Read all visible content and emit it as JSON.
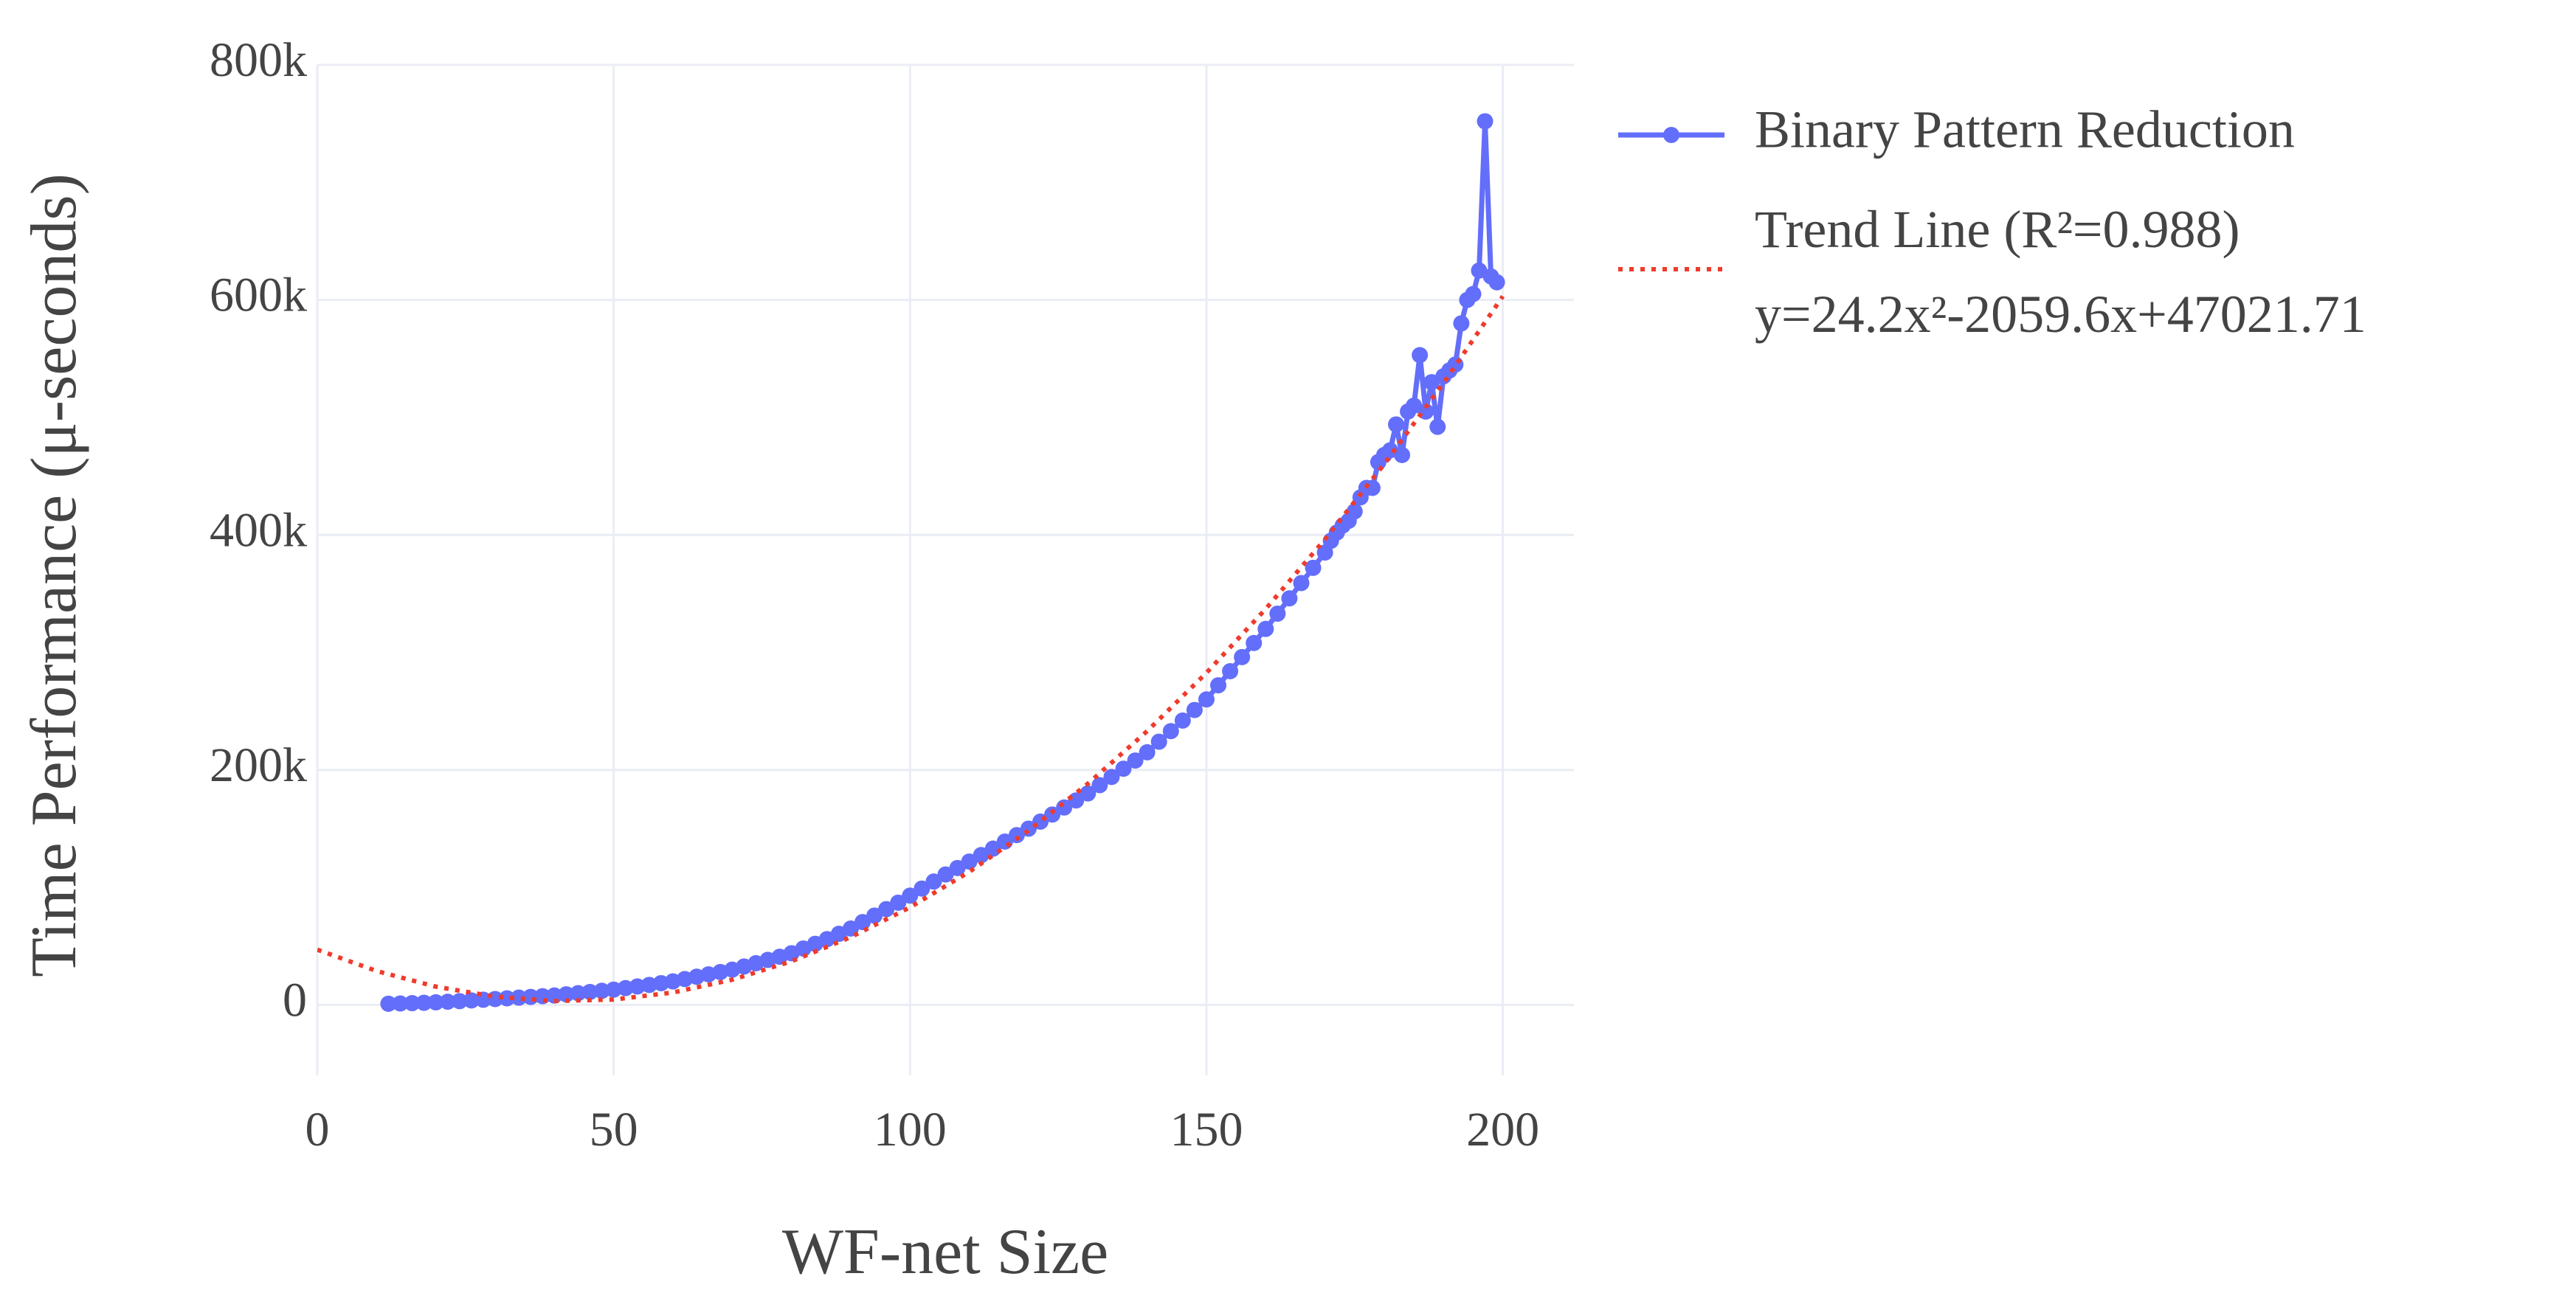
{
  "chart_data": {
    "type": "line",
    "xlabel": "WF-net Size",
    "ylabel": "Time Performance (μ-seconds)",
    "xlim": [
      0,
      212
    ],
    "ylim": [
      -60000,
      800000
    ],
    "xticks": [
      0,
      50,
      100,
      150,
      200
    ],
    "yticks": [
      0,
      {
        "value": 200000,
        "label": "200k"
      },
      {
        "value": 400000,
        "label": "400k"
      },
      {
        "value": 600000,
        "label": "600k"
      },
      {
        "value": 800000,
        "label": "800k"
      }
    ],
    "grid": true,
    "legend": "outside-right",
    "series": [
      {
        "name": "Binary Pattern Reduction",
        "color": "#636efa",
        "markers": true,
        "dash": "solid",
        "x": [
          12,
          14,
          16,
          18,
          20,
          22,
          24,
          26,
          28,
          30,
          32,
          34,
          36,
          38,
          40,
          42,
          44,
          46,
          48,
          50,
          52,
          54,
          56,
          58,
          60,
          62,
          64,
          66,
          68,
          70,
          72,
          74,
          76,
          78,
          80,
          82,
          84,
          86,
          88,
          90,
          92,
          94,
          96,
          98,
          100,
          102,
          104,
          106,
          108,
          110,
          112,
          114,
          116,
          118,
          120,
          122,
          124,
          126,
          128,
          130,
          132,
          134,
          136,
          138,
          140,
          142,
          144,
          146,
          148,
          150,
          152,
          154,
          156,
          158,
          160,
          162,
          164,
          166,
          168,
          170,
          171,
          172,
          173,
          174,
          175,
          176,
          177,
          178,
          179,
          180,
          181,
          182,
          183,
          184,
          185,
          186,
          187,
          188,
          189,
          190,
          191,
          192,
          193,
          194,
          195,
          196,
          197,
          198,
          199
        ],
        "values": [
          1000,
          1200,
          1500,
          1800,
          2200,
          2700,
          3200,
          3800,
          4400,
          5000,
          5600,
          6200,
          6800,
          7400,
          8000,
          9000,
          10000,
          11000,
          12000,
          13000,
          14300,
          15700,
          17000,
          18500,
          20000,
          22000,
          24000,
          26000,
          28000,
          30000,
          32700,
          35500,
          38300,
          41000,
          44000,
          48000,
          52000,
          56000,
          60500,
          65000,
          70500,
          76000,
          81500,
          87000,
          93000,
          99000,
          105000,
          111000,
          116500,
          122000,
          127500,
          133000,
          139000,
          144500,
          150000,
          156000,
          162000,
          168000,
          174000,
          180000,
          187000,
          194000,
          201000,
          208000,
          215000,
          224000,
          233000,
          242000,
          251000,
          260000,
          272000,
          284000,
          296000,
          308000,
          320000,
          333000,
          346000,
          359000,
          372000,
          385000,
          395000,
          402000,
          408000,
          412000,
          420000,
          432000,
          440000,
          440000,
          462000,
          468000,
          472000,
          494000,
          468000,
          505000,
          510000,
          553000,
          505000,
          530000,
          492000,
          535000,
          540000,
          545000,
          580000,
          600000,
          605000,
          625000,
          752000,
          620000,
          615000
        ]
      },
      {
        "name": "Trend Line (R²=0.988)\ny=24.2x²-2059.6x+47021.71",
        "color": "#ef3b2c",
        "markers": false,
        "dash": "dot",
        "x": [
          0,
          10,
          20,
          30,
          40,
          50,
          60,
          70,
          80,
          90,
          100,
          110,
          120,
          130,
          140,
          150,
          160,
          170,
          180,
          190,
          200
        ],
        "values": [
          47022,
          28846,
          15510,
          7014,
          3358,
          4542,
          10566,
          21430,
          37134,
          57678,
          83062,
          113286,
          148350,
          188254,
          232998,
          282582,
          337006,
          396270,
          460374,
          529318,
          603102
        ]
      }
    ]
  }
}
